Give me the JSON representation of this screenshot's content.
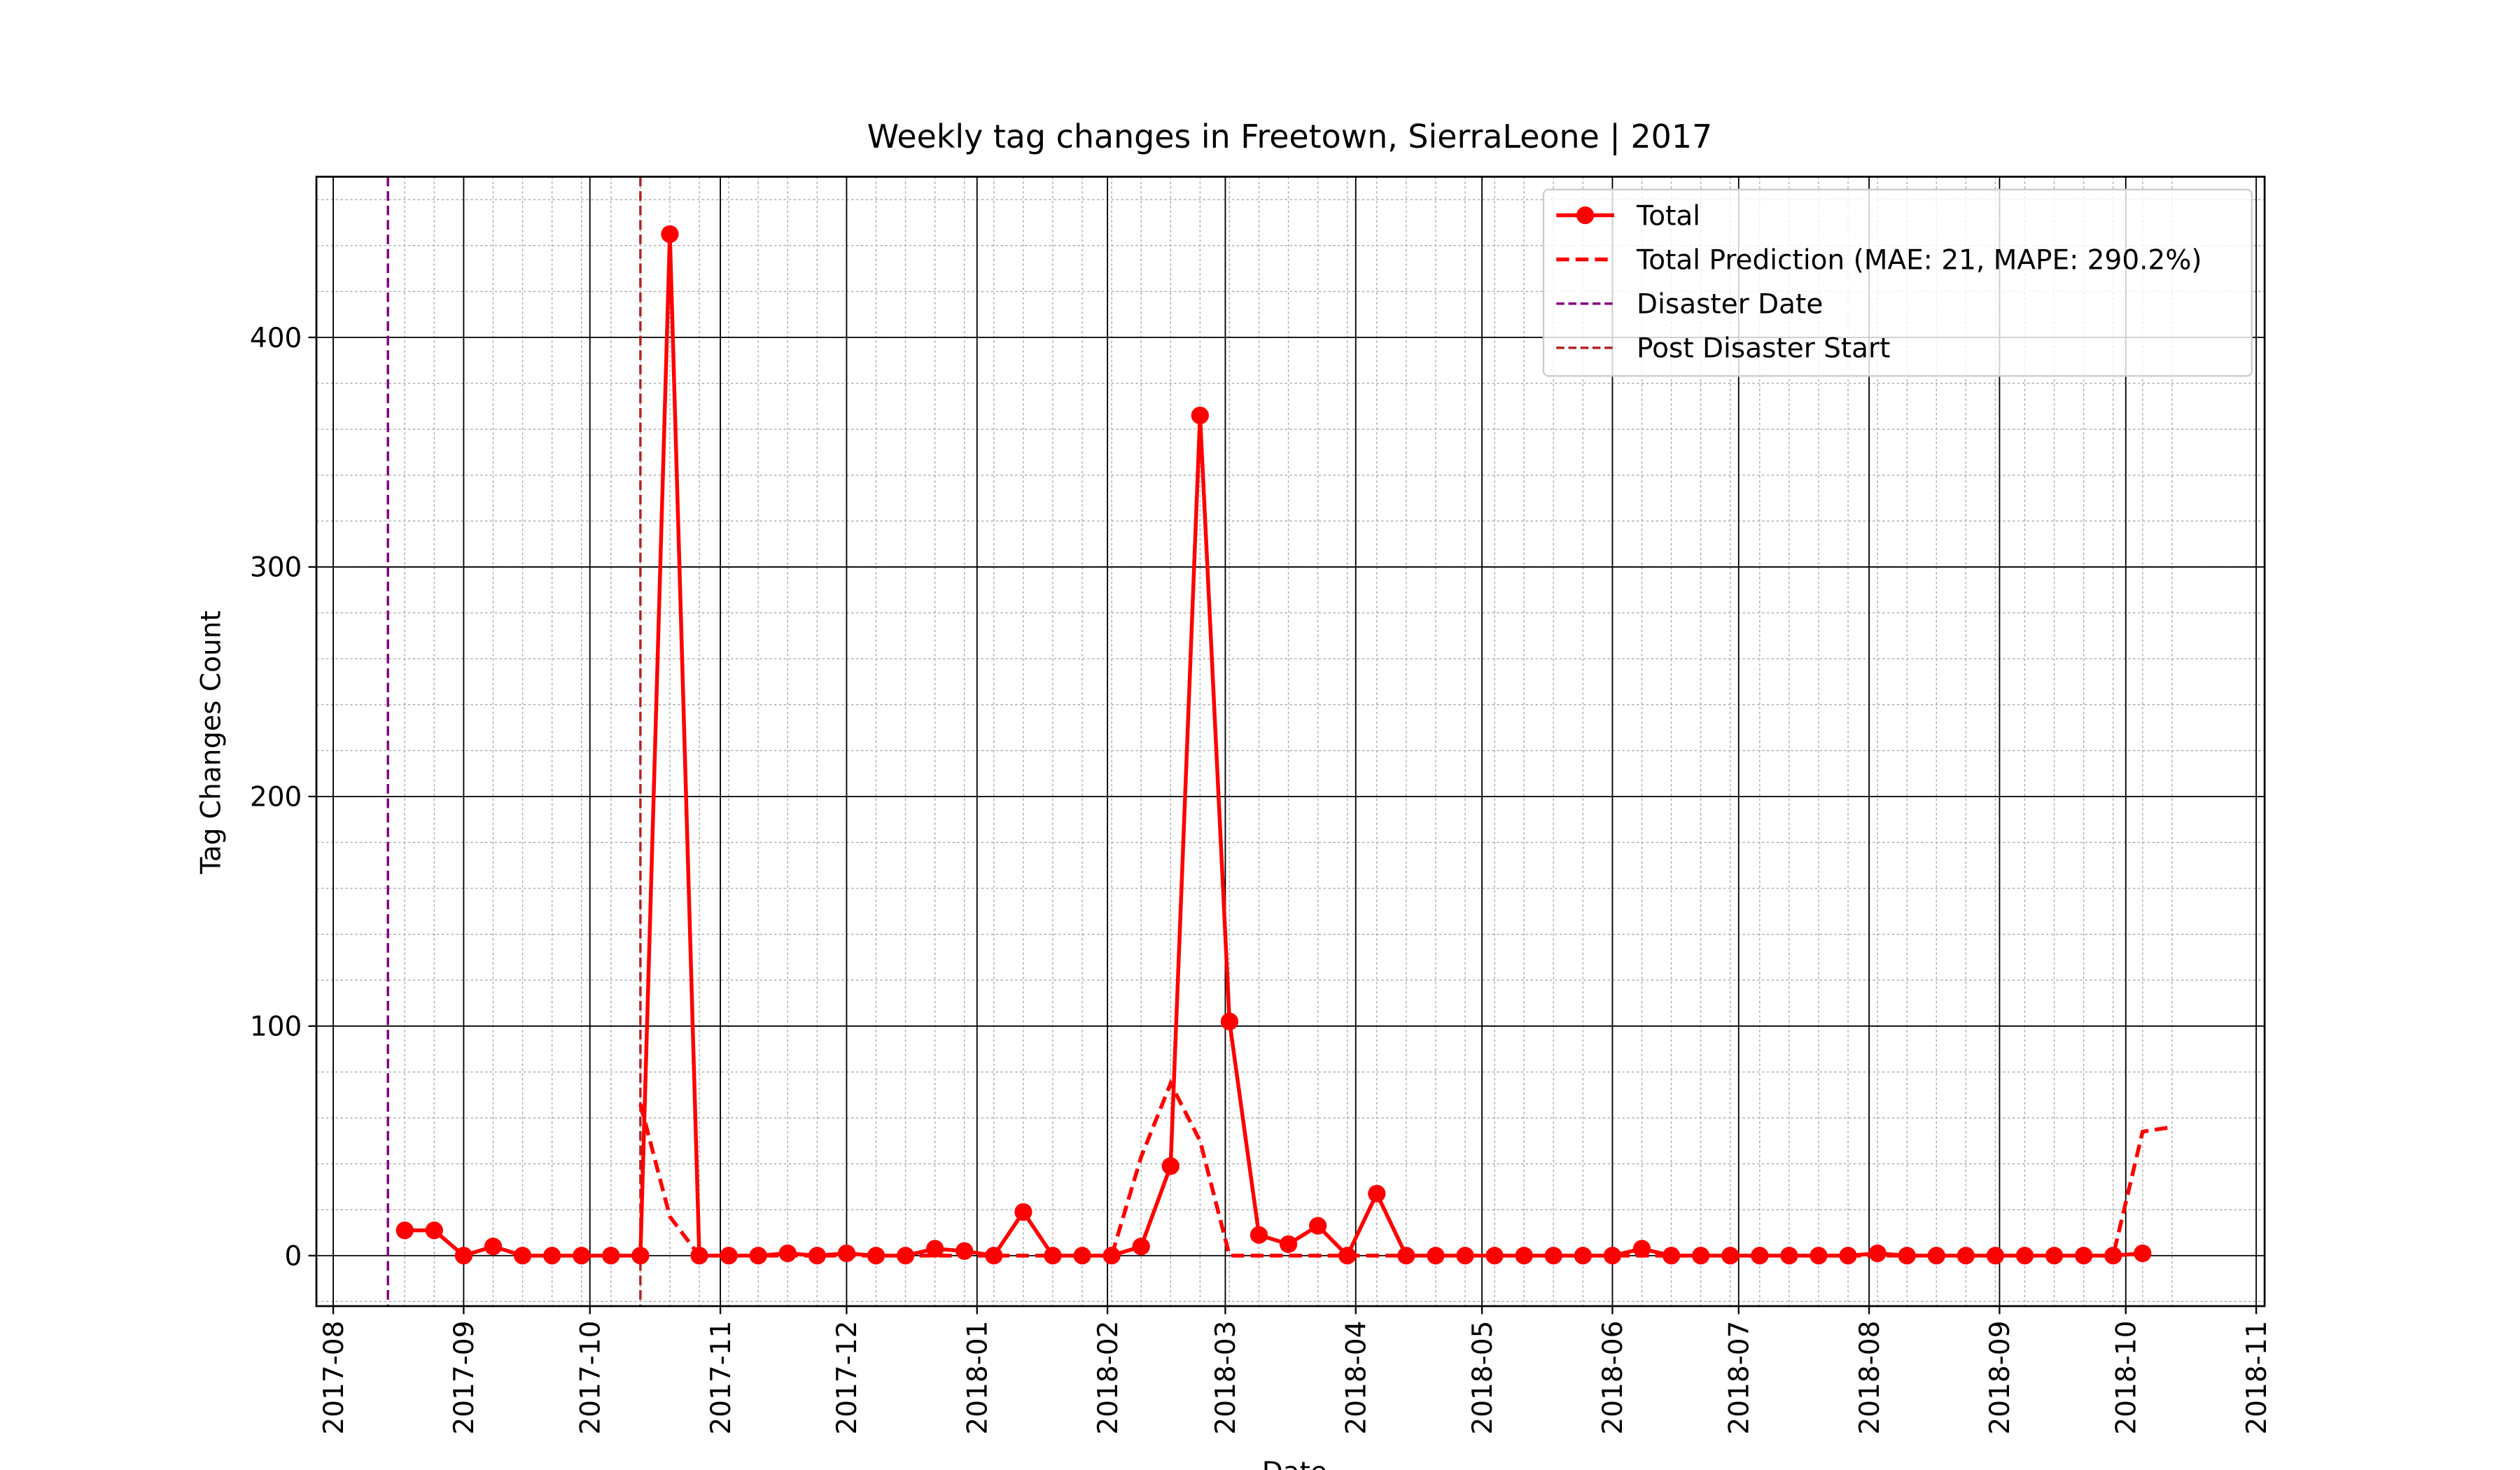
{
  "chart_data": {
    "type": "line",
    "title": "Weekly tag changes in Freetown, SierraLeone | 2017",
    "xlabel": "Date",
    "ylabel": "Tag Changes Count",
    "x": [
      "2017-08-18",
      "2017-08-25",
      "2017-09-01",
      "2017-09-08",
      "2017-09-15",
      "2017-09-22",
      "2017-09-29",
      "2017-10-06",
      "2017-10-13",
      "2017-10-20",
      "2017-10-27",
      "2017-11-03",
      "2017-11-10",
      "2017-11-17",
      "2017-11-24",
      "2017-12-01",
      "2017-12-08",
      "2017-12-15",
      "2017-12-22",
      "2017-12-29",
      "2018-01-05",
      "2018-01-12",
      "2018-01-19",
      "2018-01-26",
      "2018-02-02",
      "2018-02-09",
      "2018-02-16",
      "2018-02-23",
      "2018-03-02",
      "2018-03-09",
      "2018-03-16",
      "2018-03-23",
      "2018-03-30",
      "2018-04-06",
      "2018-04-13",
      "2018-04-20",
      "2018-04-27",
      "2018-05-04",
      "2018-05-11",
      "2018-05-18",
      "2018-05-25",
      "2018-06-01",
      "2018-06-08",
      "2018-06-15",
      "2018-06-22",
      "2018-06-29",
      "2018-07-06",
      "2018-07-13",
      "2018-07-20",
      "2018-07-27",
      "2018-08-03",
      "2018-08-10",
      "2018-08-17",
      "2018-08-24",
      "2018-08-31",
      "2018-09-07",
      "2018-09-14",
      "2018-09-21",
      "2018-09-28",
      "2018-10-05",
      "2018-10-12"
    ],
    "series": [
      {
        "name": "Total",
        "color": "#ff0000",
        "style": "solid",
        "marker": true,
        "values": [
          11,
          11,
          0,
          4,
          0,
          0,
          0,
          0,
          0,
          445,
          0,
          0,
          0,
          1,
          0,
          1,
          0,
          0,
          3,
          2,
          0,
          19,
          0,
          0,
          0,
          4,
          39,
          366,
          102,
          9,
          5,
          13,
          0,
          27,
          0,
          0,
          0,
          0,
          0,
          0,
          0,
          0,
          3,
          0,
          0,
          0,
          0,
          0,
          0,
          0,
          1,
          0,
          0,
          0,
          0,
          0,
          0,
          0,
          0,
          1,
          null
        ]
      },
      {
        "name": "Total Prediction (MAE: 21, MAPE: 290.2%)",
        "color": "#ff0000",
        "style": "dashed",
        "marker": false,
        "values": [
          null,
          null,
          null,
          null,
          null,
          null,
          null,
          null,
          66,
          17,
          0,
          0,
          0,
          0,
          0,
          0,
          0,
          0,
          0,
          0,
          0,
          0,
          0,
          0,
          0,
          43,
          75,
          50,
          0,
          0,
          0,
          0,
          0,
          0,
          0,
          0,
          0,
          0,
          0,
          0,
          0,
          0,
          0,
          0,
          0,
          0,
          0,
          0,
          0,
          0,
          0,
          0,
          0,
          0,
          0,
          0,
          0,
          0,
          0,
          54,
          56
        ]
      }
    ],
    "vlines": [
      {
        "name": "Disaster Date",
        "x": "2017-08-14",
        "color": "#800080"
      },
      {
        "name": "Post Disaster Start",
        "x": "2017-10-13",
        "color": "#b22222"
      }
    ],
    "xlim": [
      "2017-07-28",
      "2018-11-03"
    ],
    "xticks": [
      {
        "value": "2017-08-01",
        "label": "2017-08"
      },
      {
        "value": "2017-09-01",
        "label": "2017-09"
      },
      {
        "value": "2017-10-01",
        "label": "2017-10"
      },
      {
        "value": "2017-11-01",
        "label": "2017-11"
      },
      {
        "value": "2017-12-01",
        "label": "2017-12"
      },
      {
        "value": "2018-01-01",
        "label": "2018-01"
      },
      {
        "value": "2018-02-01",
        "label": "2018-02"
      },
      {
        "value": "2018-03-01",
        "label": "2018-03"
      },
      {
        "value": "2018-04-01",
        "label": "2018-04"
      },
      {
        "value": "2018-05-01",
        "label": "2018-05"
      },
      {
        "value": "2018-06-01",
        "label": "2018-06"
      },
      {
        "value": "2018-07-01",
        "label": "2018-07"
      },
      {
        "value": "2018-08-01",
        "label": "2018-08"
      },
      {
        "value": "2018-09-01",
        "label": "2018-09"
      },
      {
        "value": "2018-10-01",
        "label": "2018-10"
      },
      {
        "value": "2018-11-01",
        "label": "2018-11"
      }
    ],
    "ylim": [
      -22,
      470
    ],
    "yticks": [
      0,
      100,
      200,
      300,
      400
    ],
    "grid": true,
    "legend": "upper right"
  }
}
